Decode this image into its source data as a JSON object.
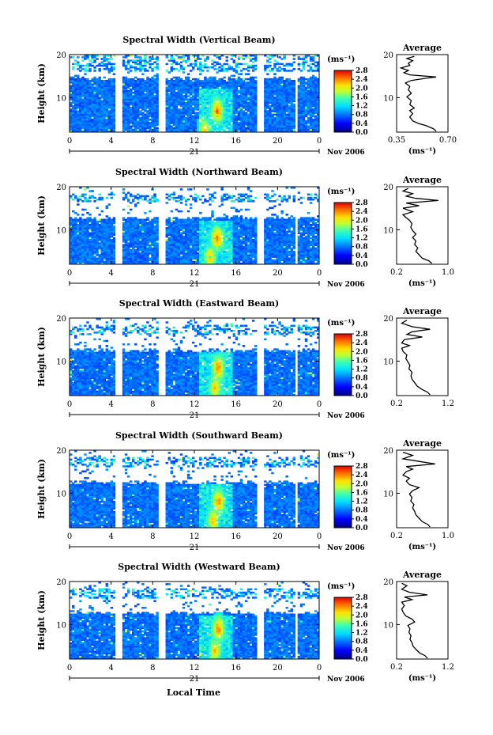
{
  "figure": {
    "xlabel": "Local Time",
    "date_label": "Nov 2006",
    "day_label": "21"
  },
  "chart_data": [
    {
      "type": "heatmap",
      "title": "Spectral Width (Vertical Beam)",
      "ylabel": "Height (km)",
      "xlim": [
        0,
        24
      ],
      "ylim": [
        2,
        20
      ],
      "x_ticks": [
        "0",
        "4",
        "8",
        "12",
        "16",
        "20",
        "0"
      ],
      "y_ticks": [
        "20",
        "10"
      ],
      "colorbar": {
        "unit": "(ms⁻¹)",
        "ticks": [
          "2.8",
          "2.4",
          "2.0",
          "1.6",
          "1.2",
          "0.8",
          "0.4",
          "0.0"
        ],
        "range": [
          0,
          2.8
        ]
      },
      "data_gaps_hours": [
        [
          4.5,
          5.0
        ],
        [
          8.5,
          9.2
        ],
        [
          18.0,
          18.6
        ],
        [
          21.6,
          22.0
        ]
      ],
      "echo_top_km": 14.6,
      "upper_layer_km": [
        16.0,
        20.0
      ],
      "high_width_features": [
        {
          "time_h": 14.2,
          "height_km": 7.0,
          "value": 2.4
        },
        {
          "time_h": 13.0,
          "height_km": 2.5,
          "value": 2.2
        }
      ],
      "profile": {
        "title": "Average",
        "xlabel": "(ms⁻¹)",
        "x_ticks": [
          "0.35",
          "0.70"
        ],
        "xlim": [
          0.35,
          0.7
        ],
        "y_ticks": [
          "20",
          "10"
        ],
        "ylim": [
          2,
          20
        ],
        "points": [
          [
            0.62,
            2.2
          ],
          [
            0.6,
            2.8
          ],
          [
            0.55,
            3.5
          ],
          [
            0.5,
            4.0
          ],
          [
            0.46,
            4.6
          ],
          [
            0.44,
            5.5
          ],
          [
            0.46,
            6.3
          ],
          [
            0.44,
            7.0
          ],
          [
            0.47,
            7.6
          ],
          [
            0.44,
            8.4
          ],
          [
            0.45,
            9.3
          ],
          [
            0.42,
            10.2
          ],
          [
            0.45,
            11.0
          ],
          [
            0.43,
            11.8
          ],
          [
            0.44,
            12.6
          ],
          [
            0.41,
            13.4
          ],
          [
            0.45,
            14.0
          ],
          [
            0.55,
            14.5
          ],
          [
            0.62,
            14.8
          ],
          [
            0.44,
            15.3
          ],
          [
            0.4,
            15.8
          ],
          [
            0.43,
            16.3
          ],
          [
            0.38,
            16.9
          ],
          [
            0.44,
            17.5
          ],
          [
            0.43,
            18.0
          ],
          [
            0.46,
            18.6
          ],
          [
            0.42,
            19.1
          ],
          [
            0.47,
            19.6
          ]
        ]
      }
    },
    {
      "type": "heatmap",
      "title": "Spectral Width (Northward Beam)",
      "ylabel": "Height (km)",
      "xlim": [
        0,
        24
      ],
      "ylim": [
        2,
        20
      ],
      "x_ticks": [
        "0",
        "4",
        "8",
        "12",
        "16",
        "20",
        "0"
      ],
      "y_ticks": [
        "20",
        "10"
      ],
      "colorbar": {
        "unit": "(ms⁻¹)",
        "ticks": [
          "2.8",
          "2.4",
          "2.0",
          "1.6",
          "1.2",
          "0.8",
          "0.4",
          "0.0"
        ],
        "range": [
          0,
          2.8
        ]
      },
      "data_gaps_hours": [
        [
          4.5,
          5.0
        ],
        [
          8.5,
          9.2
        ],
        [
          18.0,
          18.6
        ],
        [
          21.6,
          22.0
        ]
      ],
      "echo_top_km": 12.8,
      "upper_layer_km": [
        16.5,
        18.5
      ],
      "high_width_features": [
        {
          "time_h": 14.2,
          "height_km": 8.0,
          "value": 2.4
        },
        {
          "time_h": 13.5,
          "height_km": 3.5,
          "value": 2.2
        }
      ],
      "profile": {
        "title": "Average",
        "xlabel": "(ms⁻¹)",
        "x_ticks": [
          "0.2",
          "1.0"
        ],
        "xlim": [
          0.2,
          1.0
        ],
        "y_ticks": [
          "20",
          "10"
        ],
        "ylim": [
          2,
          20
        ],
        "points": [
          [
            0.75,
            2.2
          ],
          [
            0.7,
            2.8
          ],
          [
            0.6,
            3.4
          ],
          [
            0.55,
            4.2
          ],
          [
            0.5,
            5.0
          ],
          [
            0.53,
            5.8
          ],
          [
            0.48,
            6.6
          ],
          [
            0.5,
            7.4
          ],
          [
            0.45,
            8.2
          ],
          [
            0.5,
            9.0
          ],
          [
            0.45,
            9.8
          ],
          [
            0.42,
            10.6
          ],
          [
            0.44,
            11.4
          ],
          [
            0.4,
            12.2
          ],
          [
            0.35,
            12.8
          ],
          [
            0.3,
            13.5
          ],
          [
            0.45,
            14.2
          ],
          [
            0.3,
            15.0
          ],
          [
            0.55,
            15.6
          ],
          [
            0.35,
            16.2
          ],
          [
            0.85,
            16.8
          ],
          [
            0.5,
            17.3
          ],
          [
            0.35,
            17.8
          ],
          [
            0.45,
            18.4
          ],
          [
            0.3,
            19.0
          ],
          [
            0.38,
            19.6
          ]
        ]
      }
    },
    {
      "type": "heatmap",
      "title": "Spectral Width (Eastward Beam)",
      "ylabel": "Height (km)",
      "xlim": [
        0,
        24
      ],
      "ylim": [
        2,
        20
      ],
      "x_ticks": [
        "0",
        "4",
        "8",
        "12",
        "16",
        "20",
        "0"
      ],
      "y_ticks": [
        "20",
        "10"
      ],
      "colorbar": {
        "unit": "(ms⁻¹)",
        "ticks": [
          "2.8",
          "2.4",
          "2.0",
          "1.6",
          "1.2",
          "0.8",
          "0.4",
          "0.0"
        ],
        "range": [
          0,
          2.8
        ]
      },
      "data_gaps_hours": [
        [
          4.5,
          5.0
        ],
        [
          8.5,
          9.2
        ],
        [
          18.0,
          18.6
        ],
        [
          21.6,
          22.0
        ]
      ],
      "echo_top_km": 12.5,
      "upper_layer_km": [
        16.0,
        18.5
      ],
      "high_width_features": [
        {
          "time_h": 14.3,
          "height_km": 8.5,
          "value": 2.4
        },
        {
          "time_h": 14.0,
          "height_km": 4.0,
          "value": 2.2
        }
      ],
      "profile": {
        "title": "Average",
        "xlabel": "",
        "x_ticks": [
          "0.2",
          "1.2"
        ],
        "xlim": [
          0.2,
          1.2
        ],
        "y_ticks": [
          "20",
          "10"
        ],
        "ylim": [
          2,
          20
        ],
        "points": [
          [
            0.85,
            2.2
          ],
          [
            0.8,
            2.8
          ],
          [
            0.7,
            3.4
          ],
          [
            0.6,
            4.2
          ],
          [
            0.55,
            5.0
          ],
          [
            0.5,
            5.8
          ],
          [
            0.48,
            6.6
          ],
          [
            0.5,
            7.4
          ],
          [
            0.44,
            8.2
          ],
          [
            0.46,
            9.0
          ],
          [
            0.42,
            9.8
          ],
          [
            0.38,
            10.6
          ],
          [
            0.4,
            11.4
          ],
          [
            0.33,
            12.2
          ],
          [
            0.3,
            13.0
          ],
          [
            0.45,
            13.6
          ],
          [
            0.3,
            14.2
          ],
          [
            0.35,
            15.0
          ],
          [
            0.7,
            15.6
          ],
          [
            0.4,
            16.2
          ],
          [
            0.5,
            16.8
          ],
          [
            0.85,
            17.4
          ],
          [
            0.5,
            18.0
          ],
          [
            0.3,
            18.8
          ],
          [
            0.4,
            19.5
          ]
        ]
      }
    },
    {
      "type": "heatmap",
      "title": "Spectral Width (Southward Beam)",
      "ylabel": "Height (km)",
      "xlim": [
        0,
        24
      ],
      "ylim": [
        2,
        20
      ],
      "x_ticks": [
        "0",
        "4",
        "8",
        "12",
        "16",
        "20",
        "0"
      ],
      "y_ticks": [
        "20",
        "10"
      ],
      "colorbar": {
        "unit": "(ms⁻¹)",
        "ticks": [
          "2.8",
          "2.4",
          "2.0",
          "1.6",
          "1.2",
          "0.8",
          "0.4",
          "0.0"
        ],
        "range": [
          0,
          2.8
        ]
      },
      "data_gaps_hours": [
        [
          4.5,
          5.0
        ],
        [
          8.5,
          9.2
        ],
        [
          18.0,
          18.6
        ],
        [
          21.6,
          22.0
        ]
      ],
      "echo_top_km": 12.5,
      "upper_layer_km": [
        16.0,
        18.5
      ],
      "high_width_features": [
        {
          "time_h": 14.3,
          "height_km": 8.0,
          "value": 2.4
        },
        {
          "time_h": 13.8,
          "height_km": 3.8,
          "value": 2.2
        }
      ],
      "profile": {
        "title": "Average",
        "xlabel": "(ms⁻¹)",
        "x_ticks": [
          "0.2",
          "1.0"
        ],
        "xlim": [
          0.2,
          1.0
        ],
        "y_ticks": [
          "20",
          "10"
        ],
        "ylim": [
          2,
          20
        ],
        "points": [
          [
            0.72,
            2.2
          ],
          [
            0.68,
            2.8
          ],
          [
            0.6,
            3.4
          ],
          [
            0.55,
            4.2
          ],
          [
            0.5,
            5.0
          ],
          [
            0.48,
            5.8
          ],
          [
            0.45,
            6.6
          ],
          [
            0.47,
            7.4
          ],
          [
            0.42,
            8.2
          ],
          [
            0.44,
            9.0
          ],
          [
            0.4,
            9.8
          ],
          [
            0.45,
            10.6
          ],
          [
            0.55,
            11.3
          ],
          [
            0.4,
            12.0
          ],
          [
            0.35,
            12.8
          ],
          [
            0.4,
            13.5
          ],
          [
            0.3,
            14.2
          ],
          [
            0.35,
            15.0
          ],
          [
            0.45,
            15.6
          ],
          [
            0.35,
            16.2
          ],
          [
            0.8,
            16.8
          ],
          [
            0.55,
            17.4
          ],
          [
            0.3,
            18.0
          ],
          [
            0.45,
            18.8
          ],
          [
            0.3,
            19.5
          ]
        ]
      }
    },
    {
      "type": "heatmap",
      "title": "Spectral Width (Westward Beam)",
      "ylabel": "Height (km)",
      "xlim": [
        0,
        24
      ],
      "ylim": [
        2,
        20
      ],
      "x_ticks": [
        "0",
        "4",
        "8",
        "12",
        "16",
        "20",
        "0"
      ],
      "y_ticks": [
        "20",
        "10"
      ],
      "colorbar": {
        "unit": "(ms⁻¹)",
        "ticks": [
          "2.8",
          "2.4",
          "2.0",
          "1.6",
          "1.2",
          "0.8",
          "0.4",
          "0.0"
        ],
        "range": [
          0,
          2.8
        ]
      },
      "data_gaps_hours": [
        [
          4.5,
          5.0
        ],
        [
          8.5,
          9.2
        ],
        [
          18.0,
          18.6
        ],
        [
          21.6,
          22.0
        ]
      ],
      "echo_top_km": 12.8,
      "upper_layer_km": [
        16.0,
        18.5
      ],
      "high_width_features": [
        {
          "time_h": 14.3,
          "height_km": 9.0,
          "value": 2.4
        },
        {
          "time_h": 14.0,
          "height_km": 4.0,
          "value": 2.2
        }
      ],
      "profile": {
        "title": "Average",
        "xlabel": "(ms⁻¹)",
        "x_ticks": [
          "0.2",
          "1.2"
        ],
        "xlim": [
          0.2,
          1.2
        ],
        "y_ticks": [
          "20",
          "10"
        ],
        "ylim": [
          2,
          20
        ],
        "points": [
          [
            0.8,
            2.2
          ],
          [
            0.75,
            2.8
          ],
          [
            0.65,
            3.4
          ],
          [
            0.58,
            4.2
          ],
          [
            0.52,
            5.0
          ],
          [
            0.5,
            5.8
          ],
          [
            0.46,
            6.6
          ],
          [
            0.48,
            7.4
          ],
          [
            0.44,
            8.2
          ],
          [
            0.46,
            9.0
          ],
          [
            0.42,
            9.8
          ],
          [
            0.55,
            10.6
          ],
          [
            0.5,
            11.3
          ],
          [
            0.38,
            12.0
          ],
          [
            0.33,
            12.8
          ],
          [
            0.3,
            13.6
          ],
          [
            0.35,
            14.4
          ],
          [
            0.3,
            15.2
          ],
          [
            0.5,
            15.8
          ],
          [
            0.35,
            16.4
          ],
          [
            0.8,
            16.9
          ],
          [
            0.45,
            17.5
          ],
          [
            0.3,
            18.2
          ],
          [
            0.4,
            19.0
          ],
          [
            0.3,
            19.6
          ]
        ]
      }
    }
  ]
}
